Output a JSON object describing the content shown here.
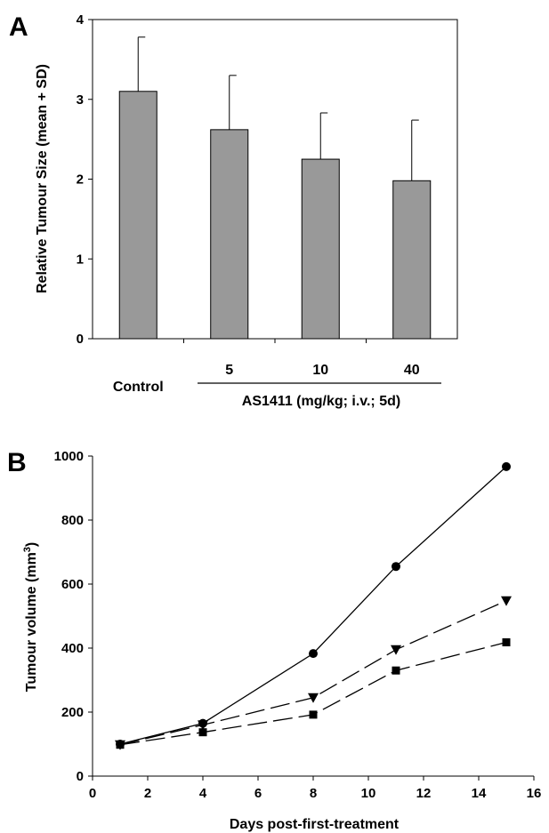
{
  "chart_data": [
    {
      "panel_label": "A",
      "type": "bar",
      "categories": [
        "Control",
        "5",
        "10",
        "40"
      ],
      "values": [
        3.1,
        2.62,
        2.25,
        1.98
      ],
      "error_plus": [
        0.68,
        0.68,
        0.58,
        0.76
      ],
      "ylabel": "Relative Tumour Size (mean + SD)",
      "group_label": "AS1411 (mg/kg; i.v.; 5d)",
      "ylim": [
        0,
        4
      ],
      "yticks": [
        "0",
        "1",
        "2",
        "3",
        "4"
      ],
      "bar_color": "#999999",
      "grid": false
    },
    {
      "panel_label": "B",
      "type": "line",
      "xlabel": "Days post-first-treatment",
      "ylabel_prefix": "Tumour volume (mm",
      "ylabel_sup": "3",
      "ylabel_suffix": ")",
      "xlim": [
        0,
        16
      ],
      "ylim": [
        0,
        1000
      ],
      "xticks": [
        "0",
        "2",
        "4",
        "6",
        "8",
        "10",
        "12",
        "14",
        "16"
      ],
      "yticks": [
        "0",
        "200",
        "400",
        "600",
        "800",
        "1000"
      ],
      "grid": false,
      "series": [
        {
          "marker": "circle",
          "line_style": "solid",
          "x": [
            1,
            4,
            8,
            11,
            15
          ],
          "y": [
            100,
            165,
            383,
            655,
            967
          ]
        },
        {
          "marker": "triangle-down",
          "line_style": "dashed",
          "x": [
            1,
            4,
            8,
            11,
            15
          ],
          "y": [
            98,
            160,
            245,
            395,
            548
          ]
        },
        {
          "marker": "square",
          "line_style": "dashed",
          "x": [
            1,
            4,
            8,
            11,
            15
          ],
          "y": [
            98,
            137,
            192,
            330,
            418
          ]
        }
      ]
    }
  ]
}
